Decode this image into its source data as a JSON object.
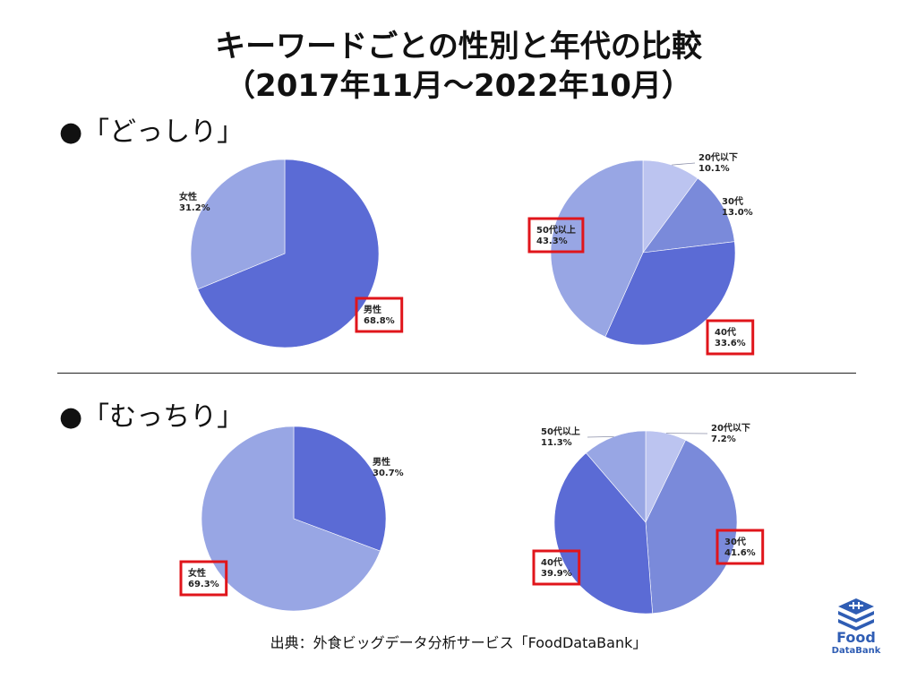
{
  "header": {
    "title_line1": "キーワードごとの性別と年代の比較",
    "title_line2": "（2017年11月～2022年10月）"
  },
  "sections": [
    {
      "label": "●「どっしり」"
    },
    {
      "label": "●「むっちり」"
    }
  ],
  "colors": {
    "male": "#5b6bd5",
    "female": "#98a6e4",
    "age_20s": "#bcc4f0",
    "age_30s": "#7a8ada",
    "age_40s": "#5b6bd5",
    "age_50s": "#98a6e4",
    "highlight": "#e0151b"
  },
  "chart_data": [
    {
      "type": "pie",
      "keyword": "どっしり",
      "slices": [
        {
          "label": "男性",
          "value": 68.8,
          "display": "68.8%",
          "color": "#5b6bd5",
          "highlight": true
        },
        {
          "label": "女性",
          "value": 31.2,
          "display": "31.2%",
          "color": "#98a6e4",
          "highlight": false
        }
      ]
    },
    {
      "type": "pie",
      "keyword": "どっしり",
      "slices": [
        {
          "label": "20代以下",
          "value": 10.1,
          "display": "10.1%",
          "color": "#bcc4f0",
          "highlight": false
        },
        {
          "label": "30代",
          "value": 13.0,
          "display": "13.0%",
          "color": "#7a8ada",
          "highlight": false
        },
        {
          "label": "40代",
          "value": 33.6,
          "display": "33.6%",
          "color": "#5b6bd5",
          "highlight": true
        },
        {
          "label": "50代以上",
          "value": 43.3,
          "display": "43.3%",
          "color": "#98a6e4",
          "highlight": true
        }
      ]
    },
    {
      "type": "pie",
      "keyword": "むっちり",
      "slices": [
        {
          "label": "男性",
          "value": 30.7,
          "display": "30.7%",
          "color": "#5b6bd5",
          "highlight": false
        },
        {
          "label": "女性",
          "value": 69.3,
          "display": "69.3%",
          "color": "#98a6e4",
          "highlight": true
        }
      ]
    },
    {
      "type": "pie",
      "keyword": "むっちり",
      "slices": [
        {
          "label": "20代以下",
          "value": 7.2,
          "display": "7.2%",
          "color": "#bcc4f0",
          "highlight": false
        },
        {
          "label": "30代",
          "value": 41.6,
          "display": "41.6%",
          "color": "#7a8ada",
          "highlight": true
        },
        {
          "label": "40代",
          "value": 39.9,
          "display": "39.9%",
          "color": "#5b6bd5",
          "highlight": true
        },
        {
          "label": "50代以上",
          "value": 11.3,
          "display": "11.3%",
          "color": "#98a6e4",
          "highlight": false
        }
      ]
    }
  ],
  "footer": {
    "source": "出典：外食ビッグデータ分析サービス「FoodDataBank」",
    "logo_word1": "Food",
    "logo_word2": "DataBank"
  }
}
